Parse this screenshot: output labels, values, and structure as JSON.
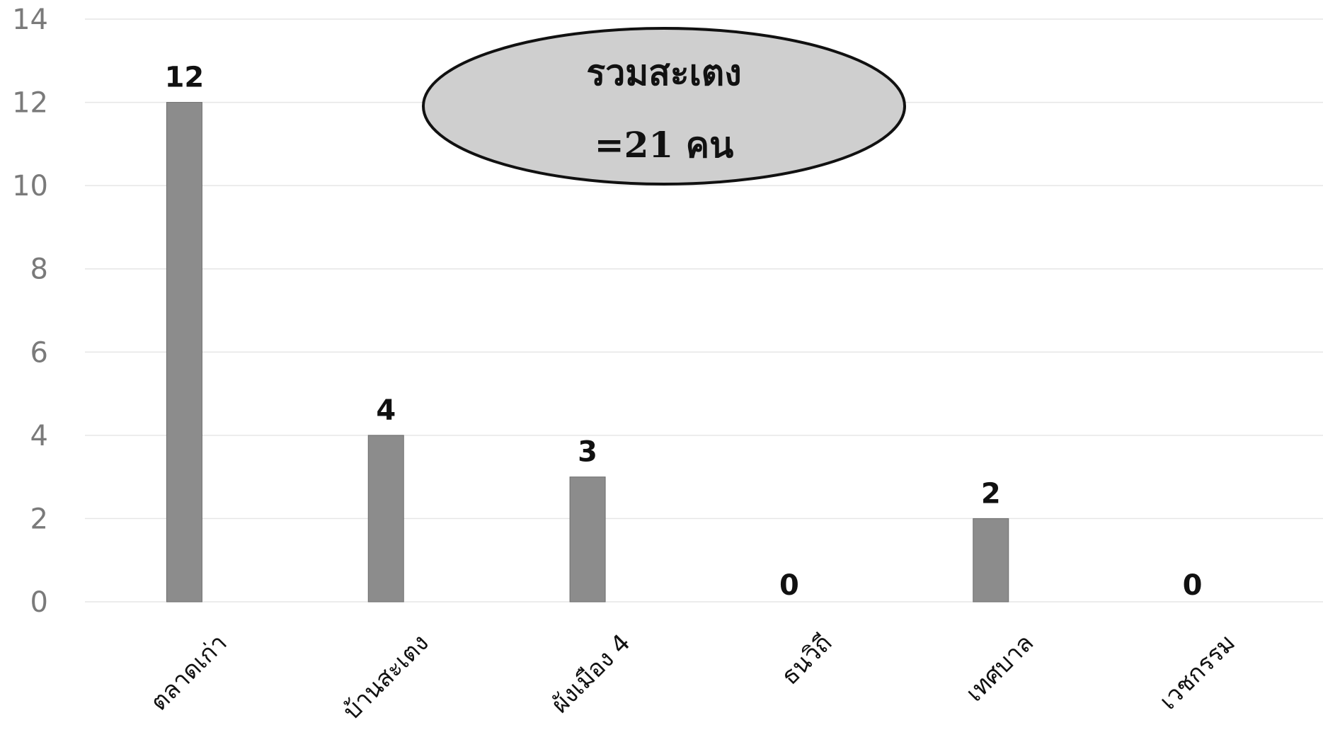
{
  "chart_data": {
    "type": "bar",
    "categories": [
      "ตลาดเก่า",
      "บ้านสะเตง",
      "ผังเมือง 4",
      "ธนวิถี",
      "เทศบาล",
      "เวชกรรม"
    ],
    "values": [
      12,
      4,
      3,
      0,
      2,
      0
    ],
    "data_labels": [
      "12",
      "4",
      "3",
      "0",
      "2",
      "0"
    ],
    "ylim": [
      0,
      14
    ],
    "yticks": [
      "0",
      "2",
      "4",
      "6",
      "8",
      "10",
      "12",
      "14"
    ],
    "grid": true,
    "bar_color": "#8c8c8c",
    "callout": {
      "line1": "รวมสะเตง",
      "line2": "=21 คน",
      "fill": "#cfcfcf"
    }
  }
}
